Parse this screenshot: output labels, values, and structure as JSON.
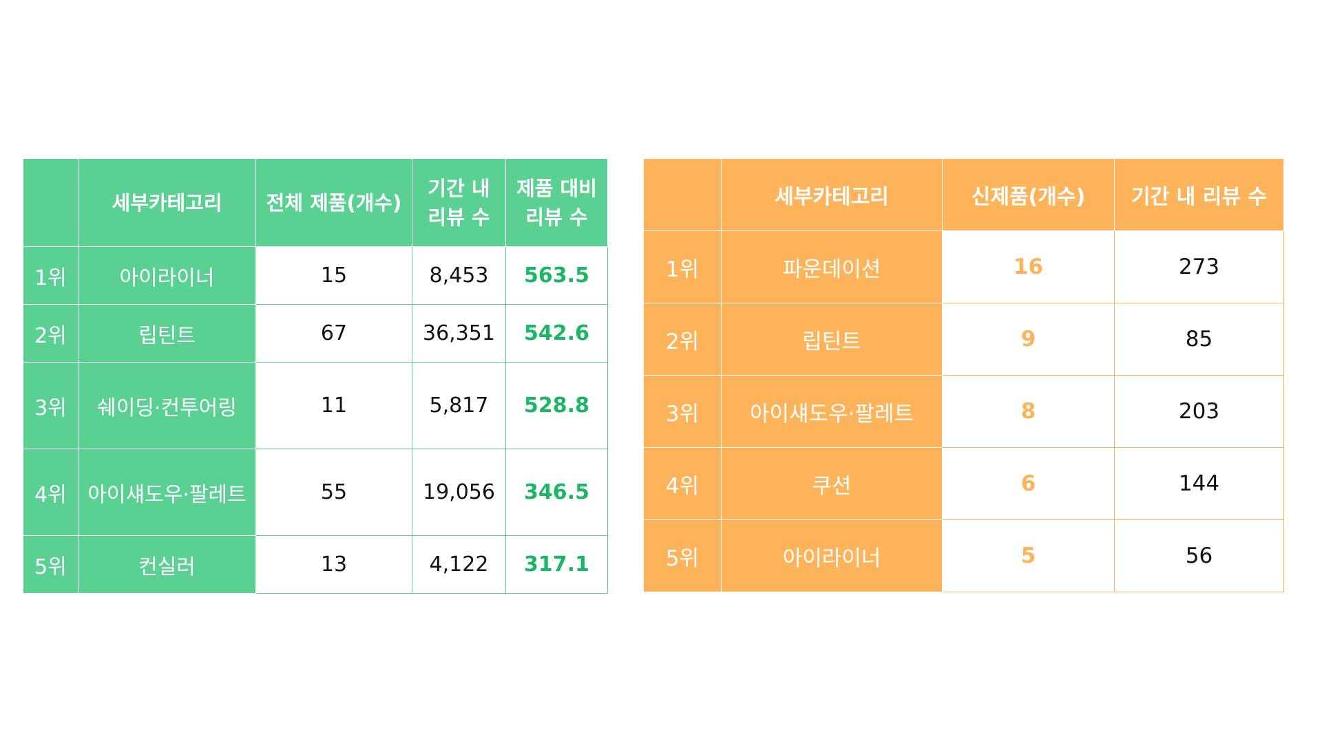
{
  "green_table": {
    "headers": [
      "",
      "세부카테고리",
      "전체 제품(개수)",
      "기간 내\n리뷰 수",
      "제품 대비\n리뷰 수"
    ],
    "rows": [
      {
        "rank": "1위",
        "category": "아이라이너",
        "total": "15",
        "reviews": "8,453",
        "ratio": "563.5"
      },
      {
        "rank": "2위",
        "category": "립틴트",
        "total": "67",
        "reviews": "36,351",
        "ratio": "542.6"
      },
      {
        "rank": "3위",
        "category": "쉐이딩·컨투어링",
        "total": "11",
        "reviews": "5,817",
        "ratio": "528.8"
      },
      {
        "rank": "4위",
        "category": "아이섀도우·팔레트",
        "total": "55",
        "reviews": "19,056",
        "ratio": "346.5"
      },
      {
        "rank": "5위",
        "category": "컨실러",
        "total": "13",
        "reviews": "4,122",
        "ratio": "317.1"
      }
    ]
  },
  "orange_table": {
    "headers": [
      "",
      "세부카테고리",
      "신제품(개수)",
      "기간 내 리뷰 수"
    ],
    "rows": [
      {
        "rank": "1위",
        "category": "파운데이션",
        "new": "16",
        "reviews": "273"
      },
      {
        "rank": "2위",
        "category": "립틴트",
        "new": "9",
        "reviews": "85"
      },
      {
        "rank": "3위",
        "category": "아이섀도우·팔레트",
        "new": "8",
        "reviews": "203"
      },
      {
        "rank": "4위",
        "category": "쿠션",
        "new": "6",
        "reviews": "144"
      },
      {
        "rank": "5위",
        "category": "아이라이너",
        "new": "5",
        "reviews": "56"
      }
    ]
  },
  "colors": {
    "green": "#5ad092",
    "green_text": "#1bb666",
    "orange": "#fdb35a"
  }
}
